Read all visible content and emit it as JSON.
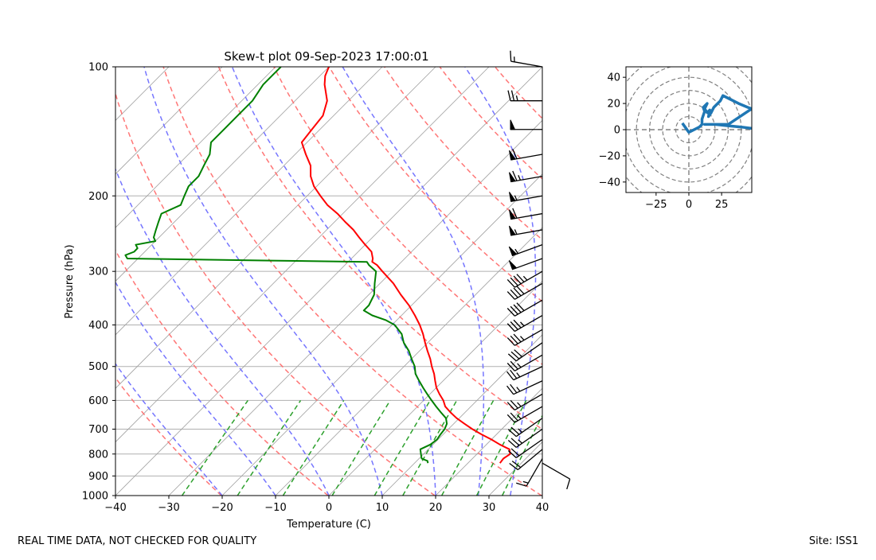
{
  "figure": {
    "footer_left": "REAL TIME DATA, NOT CHECKED FOR QUALITY",
    "footer_right": "Site: ISS1"
  },
  "chart_data": [
    {
      "type": "line",
      "subtype": "skew-t log-p",
      "title": "Skew-t plot 09-Sep-2023 17:00:01",
      "xlabel": "Temperature (C)",
      "ylabel": "Pressure (hPa)",
      "xlim": [
        -40,
        40
      ],
      "ylim": [
        1000,
        100
      ],
      "yscale": "log",
      "xticks": [
        -40,
        -30,
        -20,
        -10,
        0,
        10,
        20,
        30,
        40
      ],
      "yticks": [
        1000,
        900,
        800,
        700,
        600,
        500,
        400,
        300,
        200,
        100
      ],
      "grid": true,
      "colors": {
        "temperature": "#ff0000",
        "dewpoint": "#008000",
        "dry_adiabat": "#ff6f6f",
        "moist_adiabat": "#6f6fff",
        "mixing_ratio": "#2ca02c",
        "isotherm": "#a0a0a0",
        "gridline": "#b0b0b0"
      },
      "series": [
        {
          "name": "Temperature",
          "pressure": [
            840,
            820,
            800,
            780,
            760,
            740,
            720,
            700,
            680,
            660,
            640,
            620,
            600,
            580,
            560,
            540,
            520,
            500,
            480,
            460,
            440,
            420,
            400,
            380,
            360,
            340,
            320,
            300,
            290,
            285,
            280,
            270,
            260,
            250,
            240,
            230,
            220,
            210,
            200,
            190,
            180,
            170,
            160,
            150,
            140,
            130,
            120,
            110,
            105,
            100
          ],
          "values": [
            26,
            25.8,
            26.2,
            25.2,
            22.5,
            20,
            17.2,
            14.5,
            12,
            9.5,
            7.3,
            5.2,
            3.7,
            1.8,
            0,
            -1.5,
            -3,
            -4.8,
            -6.5,
            -8.5,
            -10.5,
            -12.5,
            -14.8,
            -17.5,
            -20.5,
            -24,
            -27.5,
            -31.8,
            -34,
            -35.5,
            -36,
            -37.5,
            -40,
            -42.5,
            -45,
            -48,
            -51,
            -54.5,
            -57.5,
            -60.5,
            -63,
            -65,
            -68,
            -71,
            -71.5,
            -72,
            -74,
            -77.5,
            -79,
            -80
          ]
        },
        {
          "name": "Dewpoint",
          "pressure": [
            840,
            830,
            820,
            800,
            780,
            760,
            740,
            720,
            700,
            680,
            660,
            640,
            620,
            600,
            580,
            560,
            540,
            520,
            500,
            480,
            460,
            440,
            420,
            400,
            390,
            380,
            370,
            360,
            340,
            320,
            300,
            290,
            285,
            283,
            280,
            275,
            270,
            265,
            260,
            255,
            250,
            240,
            230,
            220,
            210,
            200,
            190,
            180,
            170,
            160,
            150,
            140,
            130,
            120,
            110,
            105,
            100
          ],
          "values": [
            12.5,
            12,
            10.5,
            9.5,
            8.5,
            9.5,
            9.8,
            9.5,
            9.3,
            8.7,
            7.5,
            5.5,
            3.5,
            1.5,
            -0.5,
            -2.5,
            -4.5,
            -6.5,
            -8,
            -10,
            -12,
            -14.5,
            -16.5,
            -19.5,
            -22,
            -25.5,
            -28,
            -28,
            -29,
            -31,
            -33,
            -35.5,
            -36.5,
            -56,
            -82,
            -83,
            -82,
            -82,
            -83,
            -80,
            -81,
            -82,
            -83,
            -84,
            -82,
            -83,
            -84,
            -84,
            -85,
            -86,
            -88,
            -88,
            -88,
            -88,
            -89,
            -89,
            -89
          ]
        }
      ],
      "wind_barbs": [
        {
          "pressure": 100,
          "speed_kt": 15,
          "dir": 280
        },
        {
          "pressure": 120,
          "speed_kt": 25,
          "dir": 270
        },
        {
          "pressure": 140,
          "speed_kt": 50,
          "dir": 270
        },
        {
          "pressure": 160,
          "speed_kt": 60,
          "dir": 260
        },
        {
          "pressure": 180,
          "speed_kt": 65,
          "dir": 260
        },
        {
          "pressure": 200,
          "speed_kt": 55,
          "dir": 260
        },
        {
          "pressure": 220,
          "speed_kt": 60,
          "dir": 260
        },
        {
          "pressure": 240,
          "speed_kt": 55,
          "dir": 260
        },
        {
          "pressure": 260,
          "speed_kt": 55,
          "dir": 250
        },
        {
          "pressure": 280,
          "speed_kt": 50,
          "dir": 250
        },
        {
          "pressure": 300,
          "speed_kt": 45,
          "dir": 240
        },
        {
          "pressure": 320,
          "speed_kt": 40,
          "dir": 240
        },
        {
          "pressure": 350,
          "speed_kt": 40,
          "dir": 240
        },
        {
          "pressure": 380,
          "speed_kt": 35,
          "dir": 240
        },
        {
          "pressure": 410,
          "speed_kt": 35,
          "dir": 240
        },
        {
          "pressure": 440,
          "speed_kt": 30,
          "dir": 235
        },
        {
          "pressure": 470,
          "speed_kt": 25,
          "dir": 240
        },
        {
          "pressure": 500,
          "speed_kt": 25,
          "dir": 245
        },
        {
          "pressure": 540,
          "speed_kt": 25,
          "dir": 245
        },
        {
          "pressure": 580,
          "speed_kt": 25,
          "dir": 240
        },
        {
          "pressure": 620,
          "speed_kt": 25,
          "dir": 240
        },
        {
          "pressure": 660,
          "speed_kt": 25,
          "dir": 235
        },
        {
          "pressure": 700,
          "speed_kt": 25,
          "dir": 235
        },
        {
          "pressure": 740,
          "speed_kt": 20,
          "dir": 235
        },
        {
          "pressure": 780,
          "speed_kt": 20,
          "dir": 230
        },
        {
          "pressure": 820,
          "speed_kt": 15,
          "dir": 210
        },
        {
          "pressure": 840,
          "speed_kt": 10,
          "dir": 120
        }
      ]
    },
    {
      "type": "line",
      "subtype": "hodograph",
      "title": "",
      "xlim": [
        -48,
        48
      ],
      "ylim": [
        -48,
        48
      ],
      "xticks": [
        -25,
        0,
        25
      ],
      "yticks": [
        -40,
        -20,
        0,
        20,
        40
      ],
      "rings": [
        10,
        20,
        30,
        40,
        50,
        60
      ],
      "color": "#1f77b4",
      "series": [
        {
          "name": "Wind",
          "x": [
            -5,
            0,
            8,
            10,
            10,
            12,
            11,
            14,
            12,
            14,
            16,
            15,
            17,
            19,
            24,
            26,
            30,
            38,
            45,
            48,
            30,
            20,
            12,
            20,
            30,
            40,
            48
          ],
          "y": [
            5,
            -2,
            2,
            4,
            8,
            14,
            17,
            20,
            16,
            13,
            15,
            10,
            13,
            17,
            22,
            26,
            24,
            20,
            17,
            16,
            4,
            4,
            4,
            4,
            3,
            2,
            1
          ]
        }
      ]
    }
  ]
}
